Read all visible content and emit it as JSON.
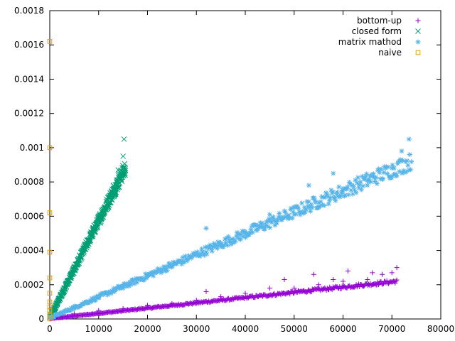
{
  "chart_data": {
    "type": "scatter",
    "title": "",
    "xlabel": "",
    "ylabel": "",
    "xlim": [
      0,
      80000
    ],
    "ylim": [
      0,
      0.0018
    ],
    "x_ticks": [
      "0",
      "10000",
      "20000",
      "30000",
      "40000",
      "50000",
      "60000",
      "70000",
      "80000"
    ],
    "y_ticks": [
      "0",
      "0.0002",
      "0.0004",
      "0.0006",
      "0.0008",
      "0.001",
      "0.0012",
      "0.0014",
      "0.0016",
      "0.0018"
    ],
    "grid": false,
    "legend_position": "top-right",
    "series": [
      {
        "name": "bottom-up",
        "color": "#9400d3",
        "marker": "plus",
        "trend": {
          "x0": 0,
          "x1": 71000,
          "y_low0": 0.0,
          "y_low1": 0.00021,
          "y_high0": 4e-06,
          "y_high1": 0.00023
        },
        "points": [
          [
            800,
            1e-05
          ],
          [
            2000,
            1.5e-05
          ],
          [
            5000,
            3e-05
          ],
          [
            10000,
            5e-05
          ],
          [
            15000,
            6e-05
          ],
          [
            20000,
            8e-05
          ],
          [
            25000,
            9e-05
          ],
          [
            30000,
            0.00011
          ],
          [
            32000,
            0.00016
          ],
          [
            35000,
            0.00013
          ],
          [
            40000,
            0.00015
          ],
          [
            45000,
            0.00018
          ],
          [
            48000,
            0.00023
          ],
          [
            50000,
            0.00018
          ],
          [
            54000,
            0.00026
          ],
          [
            55000,
            0.0002
          ],
          [
            58000,
            0.00023
          ],
          [
            60000,
            0.00022
          ],
          [
            61000,
            0.00028
          ],
          [
            65000,
            0.00023
          ],
          [
            66000,
            0.00027
          ],
          [
            68000,
            0.00026
          ],
          [
            70000,
            0.00027
          ],
          [
            71000,
            0.0003
          ]
        ]
      },
      {
        "name": "closed form",
        "color": "#009e73",
        "marker": "cross",
        "trend": {
          "x0": 0,
          "x1": 15500,
          "y_low0": 0.0,
          "y_low1": 0.00084,
          "y_high0": 1.2e-05,
          "y_high1": 0.00093
        },
        "points": [
          [
            1000,
            7e-05
          ],
          [
            2000,
            0.00012
          ],
          [
            3000,
            0.00018
          ],
          [
            5000,
            0.0003
          ],
          [
            7000,
            0.00042
          ],
          [
            9000,
            0.00052
          ],
          [
            11000,
            0.00064
          ],
          [
            13000,
            0.00078
          ],
          [
            14000,
            0.00087
          ],
          [
            15000,
            0.00095
          ],
          [
            15200,
            0.00105
          ]
        ]
      },
      {
        "name": "matrix mathod",
        "color": "#56b4e9",
        "marker": "star",
        "trend": {
          "x0": 0,
          "x1": 74000,
          "y_low0": 0.0,
          "y_low1": 0.00087,
          "y_high0": 1e-05,
          "y_high1": 0.00097
        },
        "points": [
          [
            2000,
            3e-05
          ],
          [
            5000,
            6e-05
          ],
          [
            10000,
            0.00013
          ],
          [
            15000,
            0.00018
          ],
          [
            20000,
            0.00025
          ],
          [
            25000,
            0.00031
          ],
          [
            30000,
            0.00038
          ],
          [
            32000,
            0.00053
          ],
          [
            35000,
            0.00043
          ],
          [
            40000,
            0.0005
          ],
          [
            45000,
            0.00061
          ],
          [
            50000,
            0.00061
          ],
          [
            53000,
            0.00078
          ],
          [
            55000,
            0.00068
          ],
          [
            58000,
            0.00085
          ],
          [
            60000,
            0.00075
          ],
          [
            65000,
            0.00081
          ],
          [
            70000,
            0.00088
          ],
          [
            72000,
            0.00098
          ],
          [
            73500,
            0.00105
          ]
        ]
      },
      {
        "name": "naive",
        "color": "#e69f00",
        "marker": "square",
        "points": [
          [
            0,
            0.00162
          ],
          [
            0,
            0.001
          ],
          [
            0,
            0.00062
          ],
          [
            0,
            0.00039
          ],
          [
            0,
            0.00024
          ],
          [
            0,
            0.00015
          ],
          [
            0,
            0.0001
          ],
          [
            0,
            7e-05
          ],
          [
            0,
            5e-05
          ],
          [
            0,
            3e-05
          ],
          [
            0,
            2e-05
          ],
          [
            0,
            1e-05
          ],
          [
            0,
            0.0
          ]
        ]
      }
    ]
  }
}
